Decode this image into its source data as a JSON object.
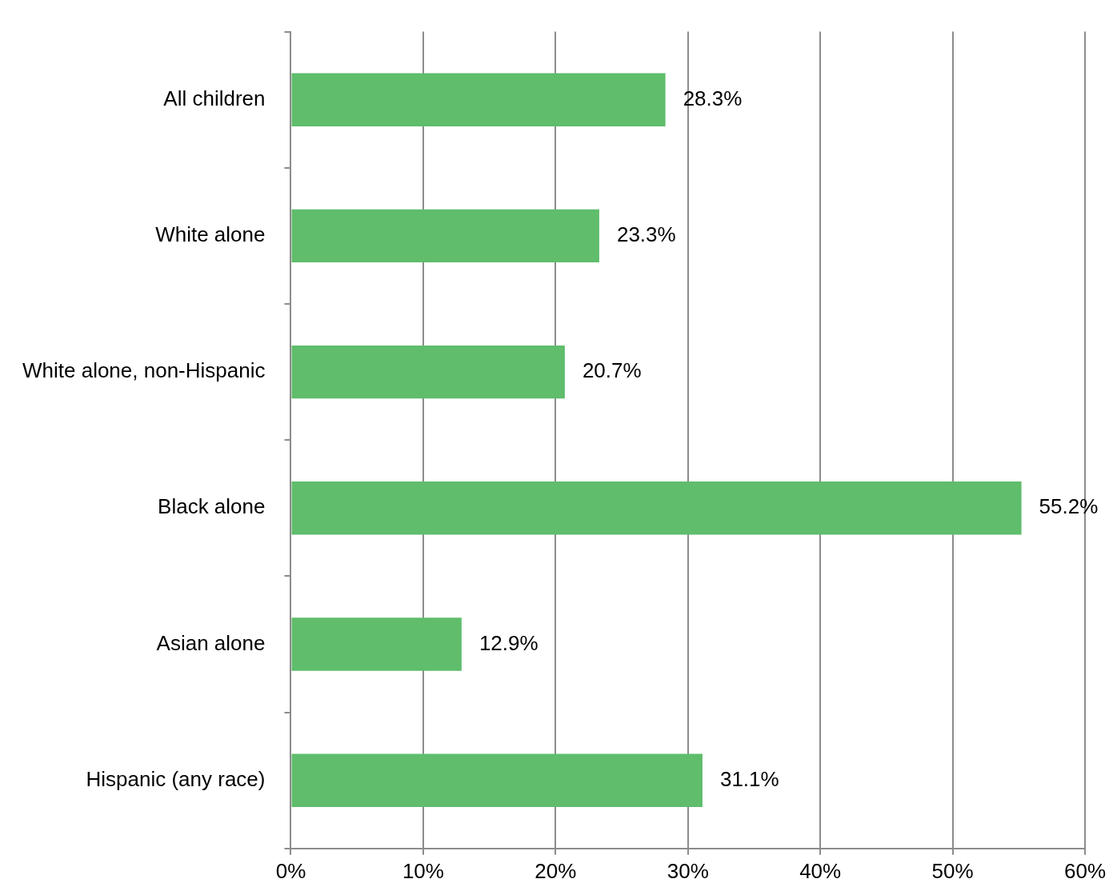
{
  "chart_data": {
    "type": "bar",
    "orientation": "horizontal",
    "categories": [
      "All children",
      "White alone",
      "White alone, non-Hispanic",
      "Black alone",
      "Asian alone",
      "Hispanic (any race)"
    ],
    "values": [
      28.3,
      23.3,
      20.7,
      55.2,
      12.9,
      31.1
    ],
    "value_labels": [
      "28.3%",
      "23.3%",
      "20.7%",
      "55.2%",
      "12.9%",
      "31.1%"
    ],
    "color": "#5fbd6c",
    "xlim": [
      0,
      60
    ],
    "xticks": [
      {
        "value": 0,
        "label": "0%"
      },
      {
        "value": 10,
        "label": "10%"
      },
      {
        "value": 20,
        "label": "20%"
      },
      {
        "value": 30,
        "label": "30%"
      },
      {
        "value": 40,
        "label": "40%"
      },
      {
        "value": 50,
        "label": "50%"
      },
      {
        "value": 60,
        "label": "60%"
      }
    ],
    "grid": "x",
    "legend": false
  }
}
